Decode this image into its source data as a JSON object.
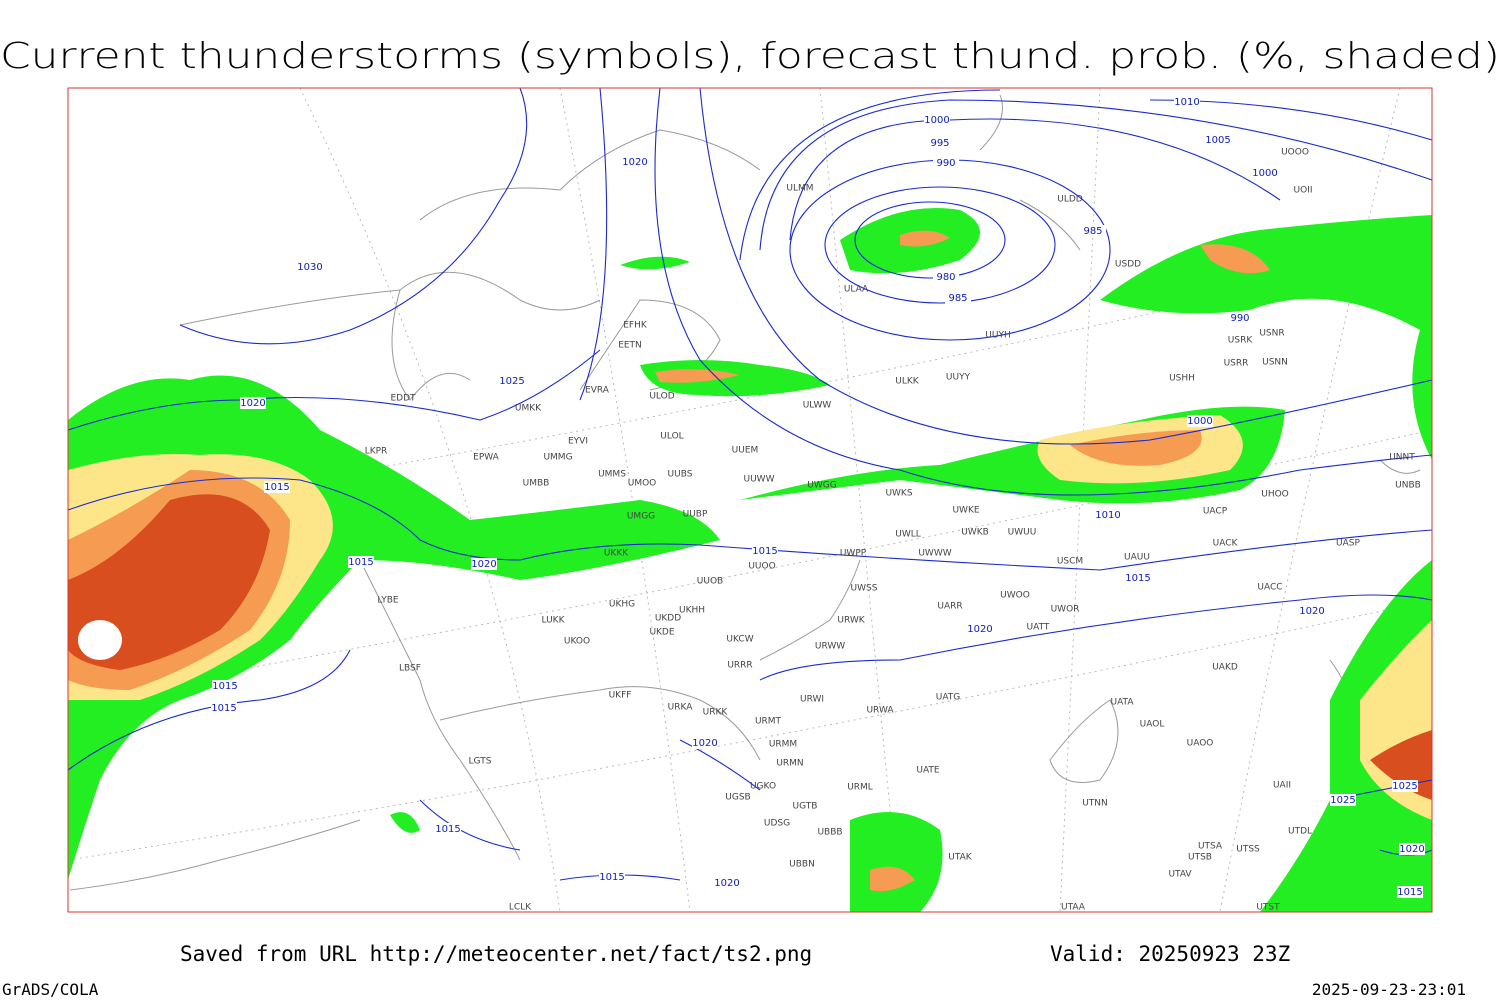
{
  "title": "Current thunderstorms (symbols), forecast thund. prob. (%, shaded)",
  "footer": {
    "source": "Saved from URL http://meteocenter.net/fact/ts2.png",
    "valid": "Valid: 20250923 23Z",
    "software": "GrADS/COLA",
    "timestamp": "2025-09-23-23:01"
  },
  "isobar_labels": [
    1010,
    1005,
    1000,
    1000,
    995,
    990,
    985,
    980,
    985,
    990,
    1020,
    1030,
    1025,
    1020,
    1015,
    1015,
    1020,
    1015,
    1000,
    1010,
    1015,
    1020,
    1020,
    1015,
    1015,
    1020,
    1015,
    1015,
    1020,
    1025,
    1025,
    1020,
    1015
  ],
  "stations": [
    "ULMM",
    "ULAA",
    "ULDD",
    "UUYH",
    "ULKK",
    "UUYY",
    "ULWW",
    "EFHK",
    "EETN",
    "EVRA",
    "ULOD",
    "EDDT",
    "UMKK",
    "EYVI",
    "EPWA",
    "UMMG",
    "LKPR",
    "ULOL",
    "UUEM",
    "UMMS",
    "UUBS",
    "UMOO",
    "UUWW",
    "UMBB",
    "UWGG",
    "UWKS",
    "UWKE",
    "UMGG",
    "UUBP",
    "UWKB",
    "UWUU",
    "UWLL",
    "UKKK",
    "UWPP",
    "UWWW",
    "USCM",
    "UAUU",
    "UACK",
    "UASP",
    "UUOO",
    "UUOB",
    "UWSS",
    "UACC",
    "UARR",
    "UWOO",
    "UWOR",
    "UATT",
    "LUKK",
    "UKHG",
    "UKDD",
    "UKHH",
    "UKDE",
    "UKCW",
    "UKOO",
    "URWK",
    "URWW",
    "LYBE",
    "LBSF",
    "URRR",
    "UAKD",
    "UKFF",
    "URKA",
    "URKK",
    "URWI",
    "UATG",
    "URWA",
    "UATA",
    "UAOL",
    "URMT",
    "URMM",
    "UAOO",
    "URMN",
    "LGTS",
    "UATE",
    "URML",
    "UAII",
    "UGKO",
    "UGSB",
    "UGTB",
    "UTNN",
    "UDSG",
    "UBBB",
    "UTDL",
    "UTSA",
    "UTSS",
    "UTAK",
    "UBBN",
    "UTSB",
    "UTAV",
    "UTAA",
    "UTST",
    "LCLK",
    "USRR",
    "USNN",
    "USHH",
    "USRK",
    "USNR",
    "USDD",
    "UOOO",
    "UOII",
    "UNNT",
    "UNBB",
    "UHOO",
    "UACP"
  ]
}
